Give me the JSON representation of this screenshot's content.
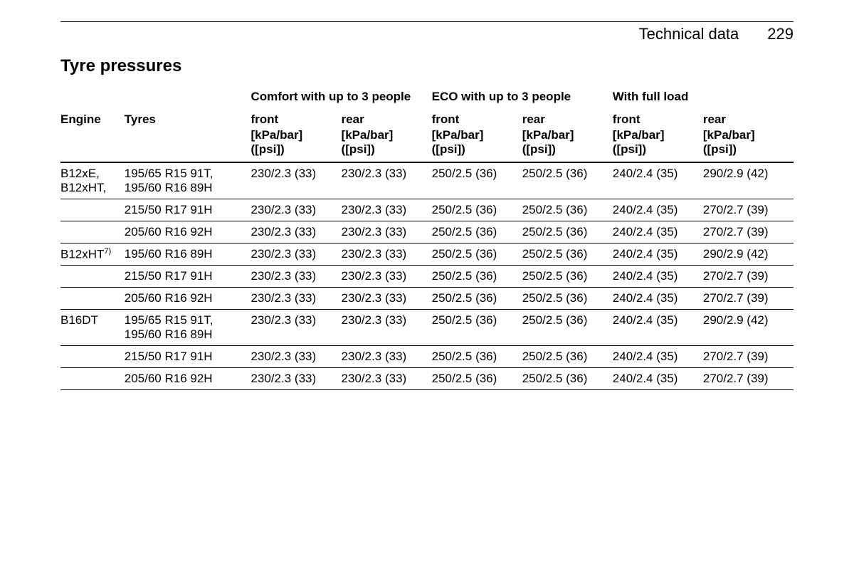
{
  "header": {
    "chapter": "Technical data",
    "page_number": "229"
  },
  "section_title": "Tyre pressures",
  "columns": {
    "engine": "Engine",
    "tyres": "Tyres",
    "group1": "Comfort with up to 3 people",
    "group2": "ECO with up to 3 people",
    "group3": "With full load",
    "front": "front",
    "rear": "rear",
    "unit_line1": "[kPa/bar]",
    "unit_line2": "([psi])"
  },
  "rows": [
    {
      "engine": "B12xE, B12xHT,",
      "tyres": "195/65 R15 91T, 195/60 R16 89H",
      "v": [
        "230/2.3 (33)",
        "230/2.3 (33)",
        "250/2.5 (36)",
        "250/2.5 (36)",
        "240/2.4 (35)",
        "290/2.9 (42)"
      ],
      "border": true
    },
    {
      "engine": "",
      "tyres": "215/50 R17 91H",
      "v": [
        "230/2.3 (33)",
        "230/2.3 (33)",
        "250/2.5 (36)",
        "250/2.5 (36)",
        "240/2.4 (35)",
        "270/2.7 (39)"
      ],
      "border": true
    },
    {
      "engine": "",
      "tyres": "205/60 R16 92H",
      "v": [
        "230/2.3 (33)",
        "230/2.3 (33)",
        "250/2.5 (36)",
        "250/2.5 (36)",
        "240/2.4 (35)",
        "270/2.7 (39)"
      ],
      "border": true
    },
    {
      "engine": "B12xHT",
      "engine_sup": "7)",
      "tyres": "195/60 R16 89H",
      "v": [
        "230/2.3 (33)",
        "230/2.3 (33)",
        "250/2.5 (36)",
        "250/2.5 (36)",
        "240/2.4 (35)",
        "290/2.9 (42)"
      ],
      "border": true
    },
    {
      "engine": "",
      "tyres": "215/50 R17 91H",
      "v": [
        "230/2.3 (33)",
        "230/2.3 (33)",
        "250/2.5 (36)",
        "250/2.5 (36)",
        "240/2.4 (35)",
        "270/2.7 (39)"
      ],
      "border": true
    },
    {
      "engine": "",
      "tyres": "205/60 R16 92H",
      "v": [
        "230/2.3 (33)",
        "230/2.3 (33)",
        "250/2.5 (36)",
        "250/2.5 (36)",
        "240/2.4 (35)",
        "270/2.7 (39)"
      ],
      "border": true
    },
    {
      "engine": "B16DT",
      "tyres": "195/65 R15 91T, 195/60 R16 89H",
      "v": [
        "230/2.3 (33)",
        "230/2.3 (33)",
        "250/2.5 (36)",
        "250/2.5 (36)",
        "240/2.4 (35)",
        "290/2.9 (42)"
      ],
      "border": true
    },
    {
      "engine": "",
      "tyres": "215/50 R17 91H",
      "v": [
        "230/2.3 (33)",
        "230/2.3 (33)",
        "250/2.5 (36)",
        "250/2.5 (36)",
        "240/2.4 (35)",
        "270/2.7 (39)"
      ],
      "border": true
    },
    {
      "engine": "",
      "tyres": "205/60 R16 92H",
      "v": [
        "230/2.3 (33)",
        "230/2.3 (33)",
        "250/2.5 (36)",
        "250/2.5 (36)",
        "240/2.4 (35)",
        "270/2.7 (39)"
      ],
      "border": true
    }
  ]
}
